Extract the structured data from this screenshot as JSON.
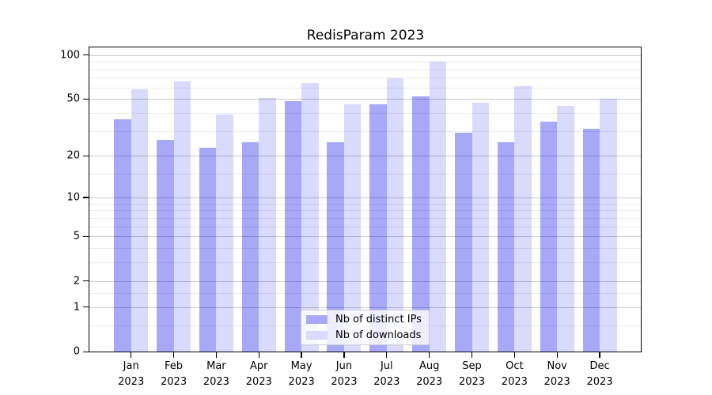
{
  "title": "RedisParam 2023",
  "chart_data": {
    "type": "bar",
    "title": "RedisParam 2023",
    "categories": [
      "Jan 2023",
      "Feb 2023",
      "Mar 2023",
      "Apr 2023",
      "May 2023",
      "Jun 2023",
      "Jul 2023",
      "Aug 2023",
      "Sep 2023",
      "Oct 2023",
      "Nov 2023",
      "Dec 2023"
    ],
    "series": [
      {
        "name": "Nb of distinct IPs",
        "fill": "rgba(0,0,238,0.34)",
        "swatch_color": "#a9a9f8",
        "values": [
          36,
          26,
          23,
          25,
          48,
          25,
          46,
          52,
          29,
          25,
          35,
          31
        ]
      },
      {
        "name": "Nb of downloads",
        "fill": "rgba(0,0,238,0.145)",
        "swatch_color": "#dbdbfb",
        "values": [
          58,
          66,
          39,
          51,
          64,
          46,
          69,
          90,
          47,
          61,
          45,
          50
        ]
      }
    ],
    "xlabel": "",
    "ylabel": "",
    "yscale": "log1p",
    "y_major_ticks": [
      0,
      1,
      2,
      5,
      10,
      20,
      50,
      100
    ],
    "y_minor_ticks": [
      0.5,
      1.5,
      3,
      4,
      6,
      7,
      8,
      9,
      15,
      30,
      40,
      60,
      70,
      80,
      90
    ],
    "ylim": [
      0,
      113
    ],
    "grid": "major+minor horizontal",
    "legend_position": "lower center inside"
  },
  "legend": {
    "items": [
      {
        "label": "Nb of distinct IPs",
        "color": "#a9a9f8"
      },
      {
        "label": "Nb of downloads",
        "color": "#dbdbfb"
      }
    ]
  },
  "colors": {
    "bar_dark": "#a9a9f8",
    "bar_light": "#dbdbfb",
    "grid_major": "#c9c9c9",
    "grid_minor": "#ececec",
    "spine": "#000000",
    "background": "#ffffff"
  }
}
